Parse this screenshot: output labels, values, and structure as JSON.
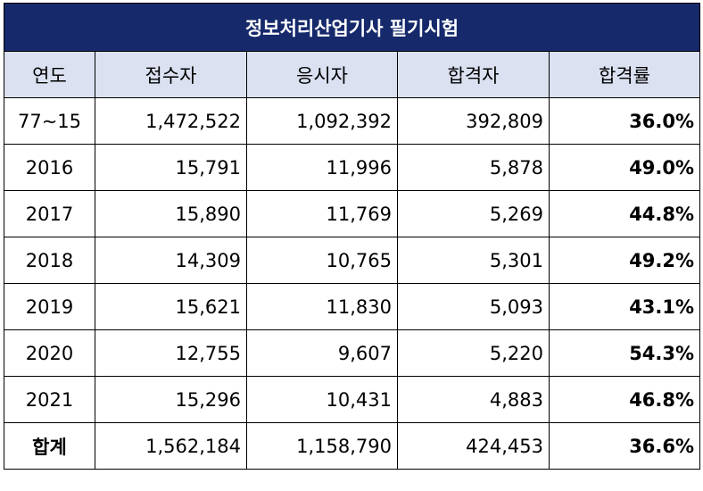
{
  "table": {
    "title": "정보처리산업기사 필기시험",
    "headers": [
      "연도",
      "접수자",
      "응시자",
      "합격자",
      "합격률"
    ],
    "rows": [
      [
        "77~15",
        "1,472,522",
        "1,092,392",
        "392,809",
        "36.0%"
      ],
      [
        "2016",
        "15,791",
        "11,996",
        "5,878",
        "49.0%"
      ],
      [
        "2017",
        "15,890",
        "11,769",
        "5,269",
        "44.8%"
      ],
      [
        "2018",
        "14,309",
        "10,765",
        "5,301",
        "49.2%"
      ],
      [
        "2019",
        "15,621",
        "11,830",
        "5,093",
        "43.1%"
      ],
      [
        "2020",
        "12,755",
        "9,607",
        "5,220",
        "54.3%"
      ],
      [
        "2021",
        "15,296",
        "10,431",
        "4,883",
        "46.8%"
      ]
    ],
    "total": [
      "합계",
      "1,562,184",
      "1,158,790",
      "424,453",
      "36.6%"
    ]
  },
  "colors": {
    "title_background": "#15296b",
    "title_text": "#ffffff",
    "header_background": "#dbe1f1"
  }
}
